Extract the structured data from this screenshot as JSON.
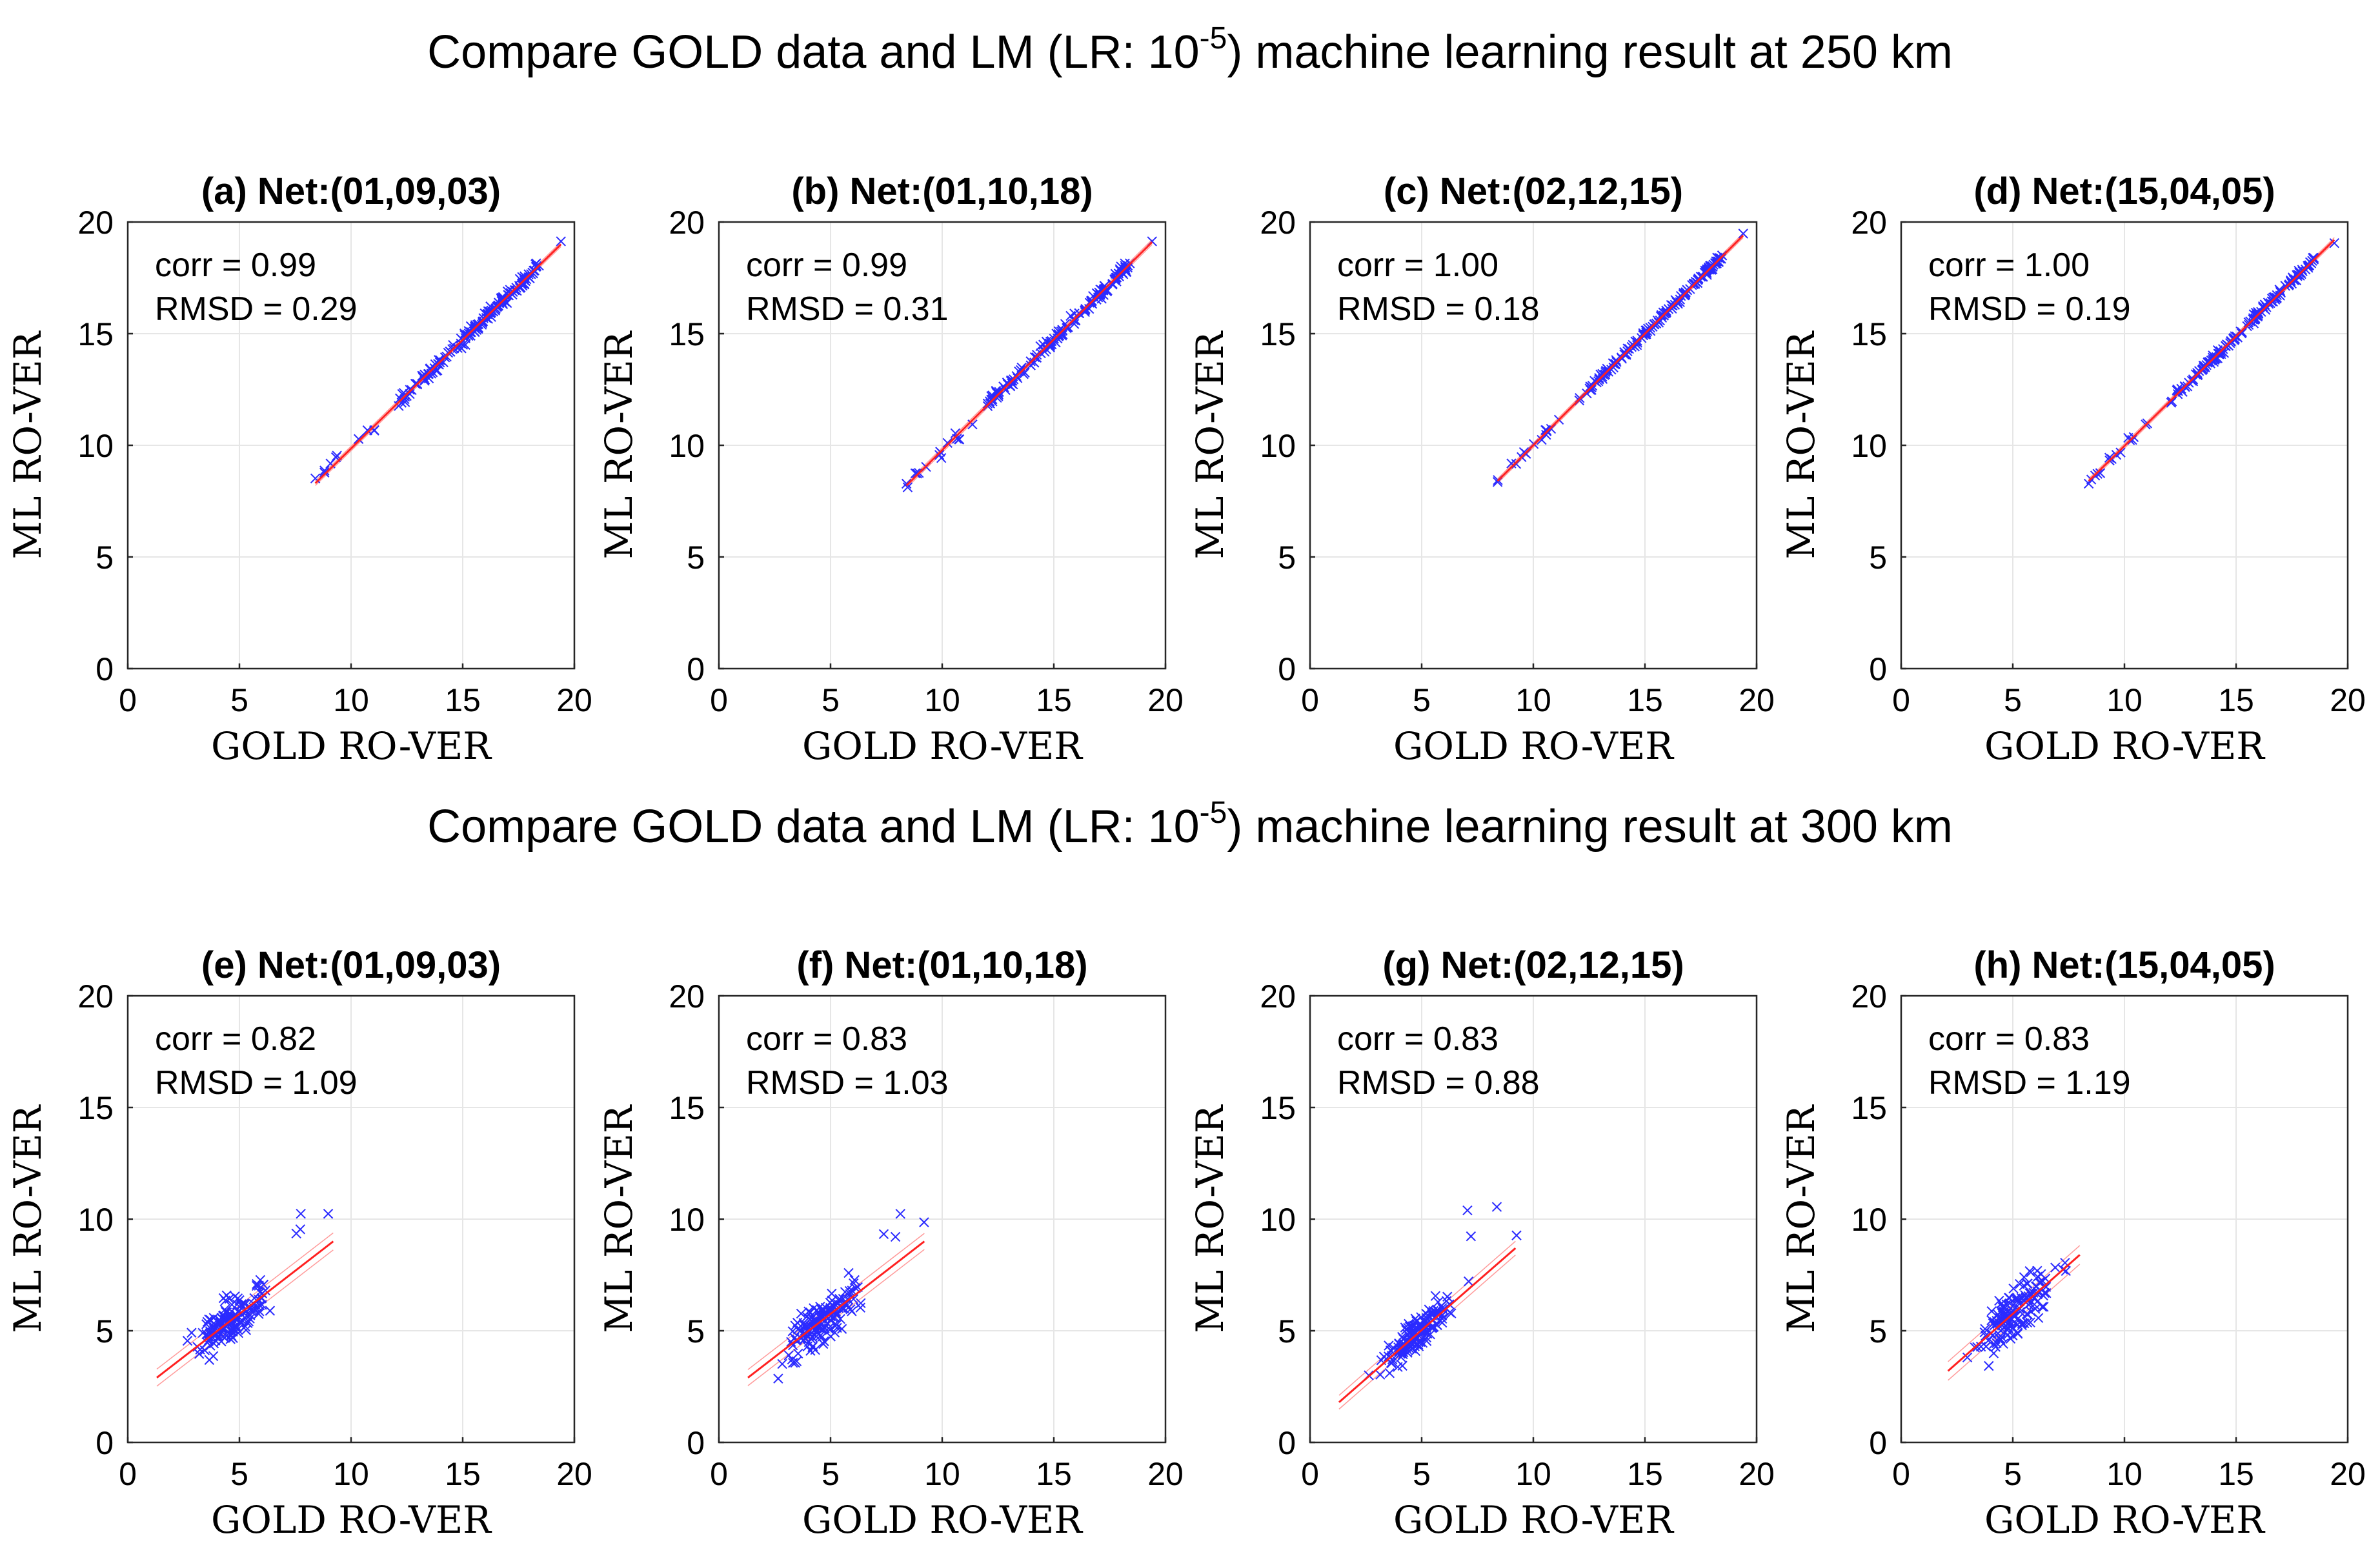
{
  "titles": {
    "top": {
      "pre": "Compare GOLD data and LM (LR: 10",
      "exp": "-5",
      "post": ") machine learning result at 250 km"
    },
    "bottom": {
      "pre": "Compare GOLD data and LM (LR: 10",
      "exp": "-5",
      "post": ") machine learning result at 300 km"
    }
  },
  "colors": {
    "points": "#2b2bff",
    "fit": "#ff2020",
    "band": "#ff9a9a",
    "grid": "#e6e6e6",
    "axis": "#262626"
  },
  "chart_data": [
    {
      "type": "scatter",
      "panel": "(a)",
      "title": "Net:(01,09,03)",
      "xlabel": "GOLD RO-VER",
      "ylabel": "ML RO-VER",
      "xlim": [
        0,
        20
      ],
      "ylim": [
        0,
        20
      ],
      "xticks": [
        0,
        5,
        10,
        15,
        20
      ],
      "yticks": [
        0,
        5,
        10,
        15,
        20
      ],
      "grid": true,
      "stats": [
        "corr = 0.99",
        "RMSD = 0.29"
      ],
      "corr": 0.99,
      "rmsd": 0.29,
      "fit": {
        "x": [
          8.4,
          19.4
        ],
        "y": [
          8.3,
          19.0
        ]
      },
      "x_range": [
        8.4,
        19.4
      ]
    },
    {
      "type": "scatter",
      "panel": "(b)",
      "title": "Net:(01,10,18)",
      "xlabel": "GOLD RO-VER",
      "ylabel": "ML RO-VER",
      "xlim": [
        0,
        20
      ],
      "ylim": [
        0,
        20
      ],
      "xticks": [
        0,
        5,
        10,
        15,
        20
      ],
      "yticks": [
        0,
        5,
        10,
        15,
        20
      ],
      "grid": true,
      "stats": [
        "corr = 0.99",
        "RMSD = 0.31"
      ],
      "corr": 0.99,
      "rmsd": 0.31,
      "fit": {
        "x": [
          8.4,
          19.4
        ],
        "y": [
          8.2,
          19.1
        ]
      },
      "x_range": [
        8.4,
        19.4
      ]
    },
    {
      "type": "scatter",
      "panel": "(c)",
      "title": "Net:(02,12,15)",
      "xlabel": "GOLD RO-VER",
      "ylabel": "ML RO-VER",
      "xlim": [
        0,
        20
      ],
      "ylim": [
        0,
        20
      ],
      "xticks": [
        0,
        5,
        10,
        15,
        20
      ],
      "yticks": [
        0,
        5,
        10,
        15,
        20
      ],
      "grid": true,
      "stats": [
        "corr = 1.00",
        "RMSD = 0.18"
      ],
      "corr": 1.0,
      "rmsd": 0.18,
      "fit": {
        "x": [
          8.4,
          19.4
        ],
        "y": [
          8.4,
          19.4
        ]
      },
      "x_range": [
        8.4,
        19.4
      ]
    },
    {
      "type": "scatter",
      "panel": "(d)",
      "title": "Net:(15,04,05)",
      "xlabel": "GOLD RO-VER",
      "ylabel": "ML RO-VER",
      "xlim": [
        0,
        20
      ],
      "ylim": [
        0,
        20
      ],
      "xticks": [
        0,
        5,
        10,
        15,
        20
      ],
      "yticks": [
        0,
        5,
        10,
        15,
        20
      ],
      "grid": true,
      "stats": [
        "corr = 1.00",
        "RMSD = 0.19"
      ],
      "corr": 1.0,
      "rmsd": 0.19,
      "fit": {
        "x": [
          8.4,
          19.4
        ],
        "y": [
          8.4,
          19.2
        ]
      },
      "x_range": [
        8.4,
        19.4
      ]
    },
    {
      "type": "scatter",
      "panel": "(e)",
      "title": "Net:(01,09,03)",
      "xlabel": "GOLD RO-VER",
      "ylabel": "ML RO-VER",
      "xlim": [
        0,
        20
      ],
      "ylim": [
        0,
        20
      ],
      "xticks": [
        0,
        5,
        10,
        15,
        20
      ],
      "yticks": [
        0,
        5,
        10,
        15,
        20
      ],
      "grid": true,
      "stats": [
        "corr = 0.82",
        "RMSD = 1.09"
      ],
      "corr": 0.82,
      "rmsd": 1.09,
      "fit": {
        "x": [
          1.3,
          9.2
        ],
        "y": [
          2.9,
          9.0
        ]
      },
      "x_range": [
        1.3,
        9.2
      ]
    },
    {
      "type": "scatter",
      "panel": "(f)",
      "title": "Net:(01,10,18)",
      "xlabel": "GOLD RO-VER",
      "ylabel": "ML RO-VER",
      "xlim": [
        0,
        20
      ],
      "ylim": [
        0,
        20
      ],
      "xticks": [
        0,
        5,
        10,
        15,
        20
      ],
      "yticks": [
        0,
        5,
        10,
        15,
        20
      ],
      "grid": true,
      "stats": [
        "corr = 0.83",
        "RMSD = 1.03"
      ],
      "corr": 0.83,
      "rmsd": 1.03,
      "fit": {
        "x": [
          1.3,
          9.2
        ],
        "y": [
          2.9,
          9.0
        ]
      },
      "x_range": [
        1.3,
        9.2
      ]
    },
    {
      "type": "scatter",
      "panel": "(g)",
      "title": "Net:(02,12,15)",
      "xlabel": "GOLD RO-VER",
      "ylabel": "ML RO-VER",
      "xlim": [
        0,
        20
      ],
      "ylim": [
        0,
        20
      ],
      "xticks": [
        0,
        5,
        10,
        15,
        20
      ],
      "yticks": [
        0,
        5,
        10,
        15,
        20
      ],
      "grid": true,
      "stats": [
        "corr = 0.83",
        "RMSD = 0.88"
      ],
      "corr": 0.83,
      "rmsd": 0.88,
      "fit": {
        "x": [
          1.3,
          9.2
        ],
        "y": [
          1.8,
          8.7
        ]
      },
      "x_range": [
        1.3,
        9.2
      ]
    },
    {
      "type": "scatter",
      "panel": "(h)",
      "title": "Net:(15,04,05)",
      "xlabel": "GOLD RO-VER",
      "ylabel": "ML RO-VER",
      "xlim": [
        0,
        20
      ],
      "ylim": [
        0,
        20
      ],
      "xticks": [
        0,
        5,
        10,
        15,
        20
      ],
      "yticks": [
        0,
        5,
        10,
        15,
        20
      ],
      "grid": true,
      "stats": [
        "corr = 0.83",
        "RMSD = 1.19"
      ],
      "corr": 0.83,
      "rmsd": 1.19,
      "fit": {
        "x": [
          2.1,
          8.0
        ],
        "y": [
          3.2,
          8.4
        ]
      },
      "x_range": [
        2.1,
        8.0
      ]
    }
  ]
}
